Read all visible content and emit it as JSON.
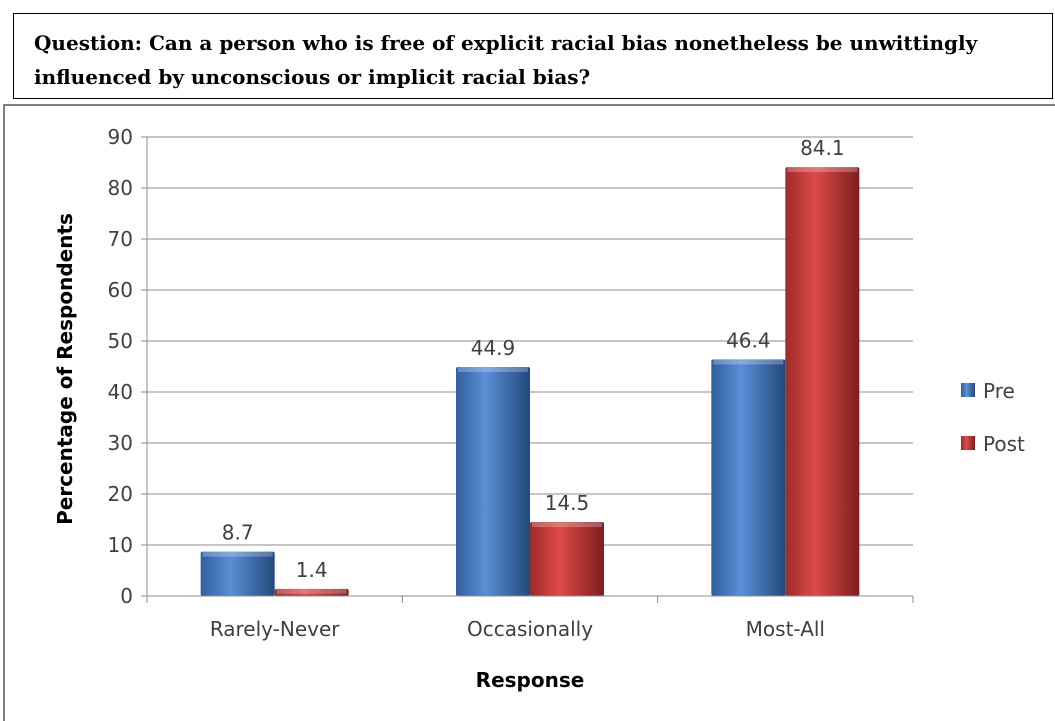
{
  "question": "Question: Can a person who is free of explicit racial bias nonetheless be unwittingly influenced by unconscious or implicit racial bias?",
  "chart_data": {
    "type": "bar",
    "title": "",
    "xlabel": "Response",
    "ylabel": "Percentage of Respondents",
    "categories": [
      "Rarely-Never",
      "Occasionally",
      "Most-All"
    ],
    "series": [
      {
        "name": "Pre",
        "values": [
          8.7,
          44.9,
          46.4
        ],
        "color": "#4a7ec9"
      },
      {
        "name": "Post",
        "values": [
          1.4,
          14.5,
          84.1
        ],
        "color": "#cc3b3b"
      }
    ],
    "ylim": [
      0,
      90
    ],
    "yticks": [
      0,
      10,
      20,
      30,
      40,
      50,
      60,
      70,
      80,
      90
    ],
    "grid": true,
    "legend": "right"
  }
}
